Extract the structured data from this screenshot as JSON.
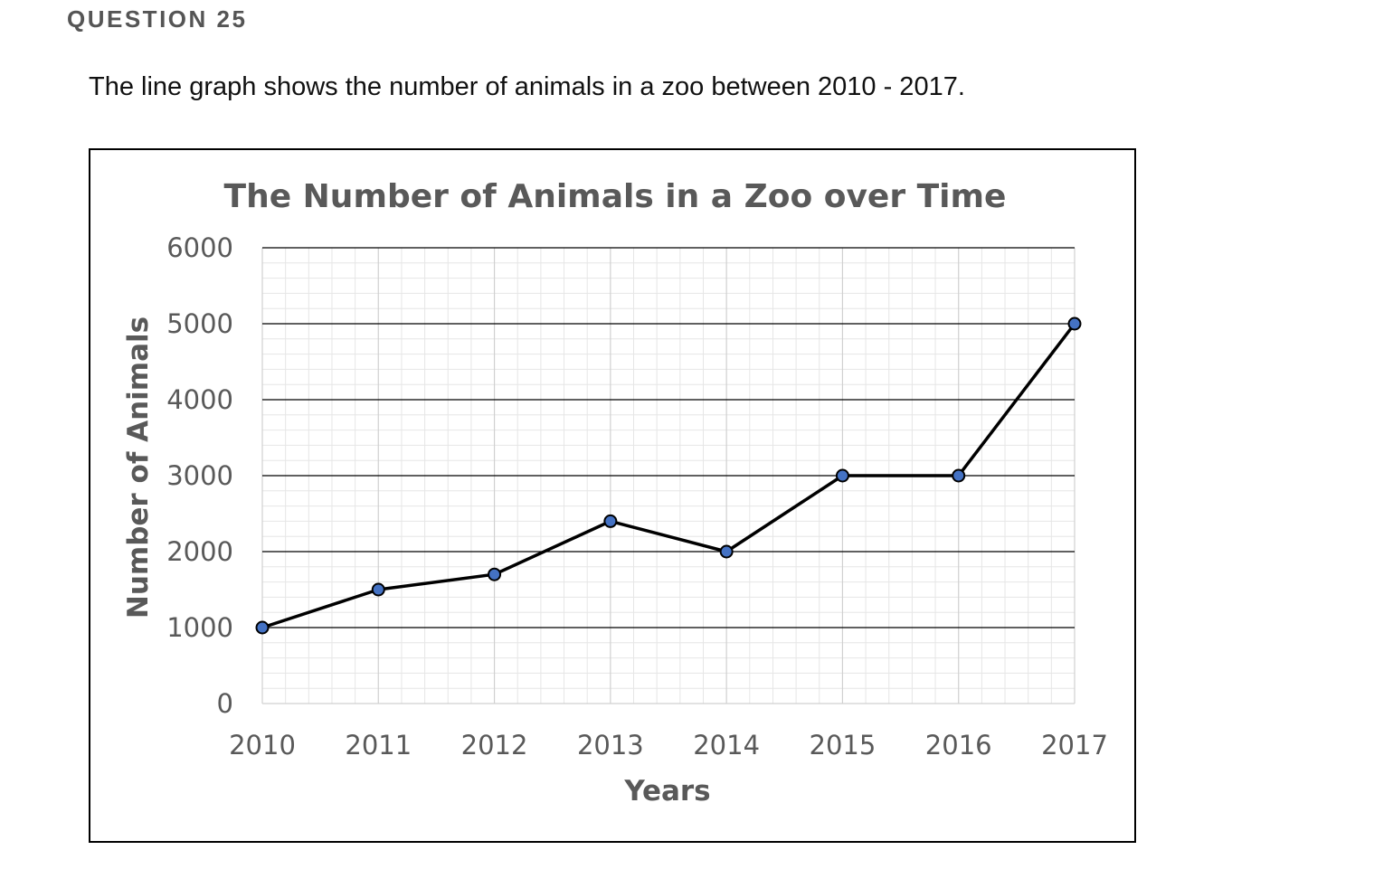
{
  "question": {
    "label": "QUESTION 25",
    "text": "The line graph shows the number of animals in a zoo between 2010 - 2017."
  },
  "chart_data": {
    "type": "line",
    "title": "The Number of Animals in a Zoo over Time",
    "xlabel": "Years",
    "ylabel": "Number of Animals",
    "x": [
      "2010",
      "2011",
      "2012",
      "2013",
      "2014",
      "2015",
      "2016",
      "2017"
    ],
    "series": [
      {
        "values": [
          1000,
          1500,
          1700,
          2400,
          2000,
          3000,
          3000,
          5000
        ]
      }
    ],
    "ylim": [
      0,
      6000
    ],
    "yticks": [
      0,
      1000,
      2000,
      3000,
      4000,
      5000,
      6000
    ],
    "grid": true,
    "legend": "none",
    "colors": {
      "line": "#000000",
      "marker_fill": "#4472C4",
      "major_grid": "#000000",
      "minor_grid": "#e6e6e6",
      "text": "#595959"
    }
  }
}
